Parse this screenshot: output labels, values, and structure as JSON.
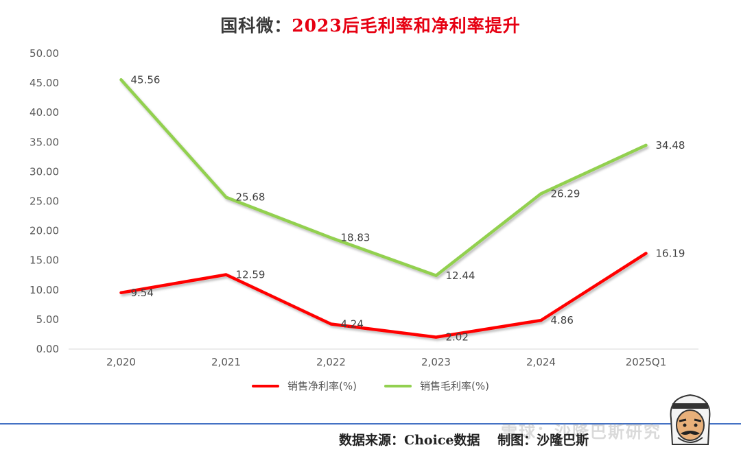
{
  "title": {
    "part1": "国科微：",
    "part2": "2023后毛利率和净利率提升"
  },
  "chart_data": {
    "type": "line",
    "categories": [
      "2,020",
      "2,021",
      "2,022",
      "2,023",
      "2,024",
      "2025Q1"
    ],
    "y_ticks": [
      "0.00",
      "5.00",
      "10.00",
      "15.00",
      "20.00",
      "25.00",
      "30.00",
      "35.00",
      "40.00",
      "45.00",
      "50.00"
    ],
    "ylim": [
      0,
      50
    ],
    "grid": false,
    "legend_position": "bottom",
    "series": [
      {
        "name": "销售净利率(%)",
        "color": "#ff0000",
        "values": [
          9.54,
          12.59,
          4.24,
          2.02,
          4.86,
          16.19
        ],
        "labels": [
          "9.54",
          "12.59",
          "4.24",
          "2.02",
          "4.86",
          "16.19"
        ]
      },
      {
        "name": "销售毛利率(%)",
        "color": "#92d050",
        "values": [
          45.56,
          25.68,
          18.83,
          12.44,
          26.29,
          34.48
        ],
        "labels": [
          "45.56",
          "25.68",
          "18.83",
          "12.44",
          "26.29",
          "34.48"
        ]
      }
    ]
  },
  "footer": {
    "source": "数据来源：Choice数据　 制图：沙隆巴斯",
    "watermark": "雪球：沙隆巴斯研究"
  }
}
